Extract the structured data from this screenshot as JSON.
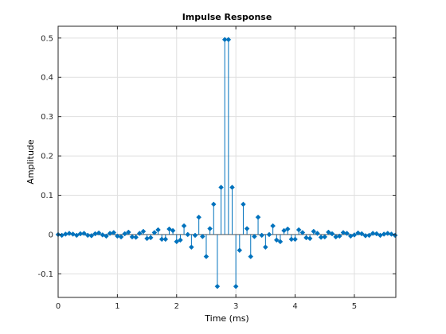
{
  "chart_data": {
    "type": "stem",
    "title": "Impulse Response",
    "xlabel": "Time (ms)",
    "ylabel": "Amplitude",
    "xlim": [
      0,
      5.7
    ],
    "ylim": [
      -0.16,
      0.53
    ],
    "xticks": [
      0,
      1,
      2,
      3,
      4,
      5
    ],
    "xtick_labels": [
      "0",
      "1",
      "2",
      "3",
      "4",
      "5"
    ],
    "yticks": [
      -0.1,
      0,
      0.1,
      0.2,
      0.3,
      0.4,
      0.5
    ],
    "ytick_labels": [
      "-0.1",
      "0",
      "0.1",
      "0.2",
      "0.3",
      "0.4",
      "0.5"
    ],
    "grid": true,
    "accent_color": "#0072bd",
    "series": [
      {
        "x": [
          0.0,
          0.0625,
          0.125,
          0.1875,
          0.25,
          0.3125,
          0.375,
          0.4375,
          0.5,
          0.5625,
          0.625,
          0.6875,
          0.75,
          0.8125,
          0.875,
          0.9375,
          1.0,
          1.0625,
          1.125,
          1.1875,
          1.25,
          1.3125,
          1.375,
          1.4375,
          1.5,
          1.5625,
          1.625,
          1.6875,
          1.75,
          1.8125,
          1.875,
          1.9375,
          2.0,
          2.0625,
          2.125,
          2.1875,
          2.25,
          2.3125,
          2.375,
          2.4375,
          2.5,
          2.5625,
          2.625,
          2.6875,
          2.75,
          2.8125,
          2.875,
          2.9375,
          3.0,
          3.0625,
          3.125,
          3.1875,
          3.25,
          3.3125,
          3.375,
          3.4375,
          3.5,
          3.5625,
          3.625,
          3.6875,
          3.75,
          3.8125,
          3.875,
          3.9375,
          4.0,
          4.0625,
          4.125,
          4.1875,
          4.25,
          4.3125,
          4.375,
          4.4375,
          4.5,
          4.5625,
          4.625,
          4.6875,
          4.75,
          4.8125,
          4.875,
          4.9375,
          5.0,
          5.0625,
          5.125,
          5.1875,
          5.25,
          5.3125,
          5.375,
          5.4375,
          5.5,
          5.5625,
          5.625,
          5.6875
        ],
        "values": [
          0.0,
          -0.002,
          0.001,
          0.003,
          0.001,
          -0.002,
          0.002,
          0.003,
          -0.002,
          -0.003,
          0.002,
          0.004,
          -0.001,
          -0.004,
          0.003,
          0.005,
          -0.004,
          -0.006,
          0.002,
          0.006,
          -0.006,
          -0.007,
          0.003,
          0.008,
          -0.01,
          -0.008,
          0.005,
          0.012,
          -0.012,
          -0.012,
          0.014,
          0.01,
          -0.018,
          -0.014,
          0.022,
          0.0,
          -0.032,
          -0.002,
          0.044,
          -0.005,
          -0.056,
          0.015,
          0.077,
          -0.132,
          0.12,
          0.496,
          0.496,
          0.12,
          -0.132,
          -0.04,
          0.077,
          0.015,
          -0.056,
          -0.005,
          0.044,
          -0.002,
          -0.032,
          0.0,
          0.022,
          -0.014,
          -0.018,
          0.01,
          0.014,
          -0.012,
          -0.012,
          0.012,
          0.005,
          -0.008,
          -0.01,
          0.008,
          0.003,
          -0.007,
          -0.006,
          0.006,
          0.002,
          -0.006,
          -0.004,
          0.005,
          0.003,
          -0.004,
          -0.001,
          0.004,
          0.002,
          -0.003,
          -0.002,
          0.003,
          0.002,
          -0.002,
          0.001,
          0.003,
          0.001,
          -0.002
        ]
      }
    ]
  }
}
